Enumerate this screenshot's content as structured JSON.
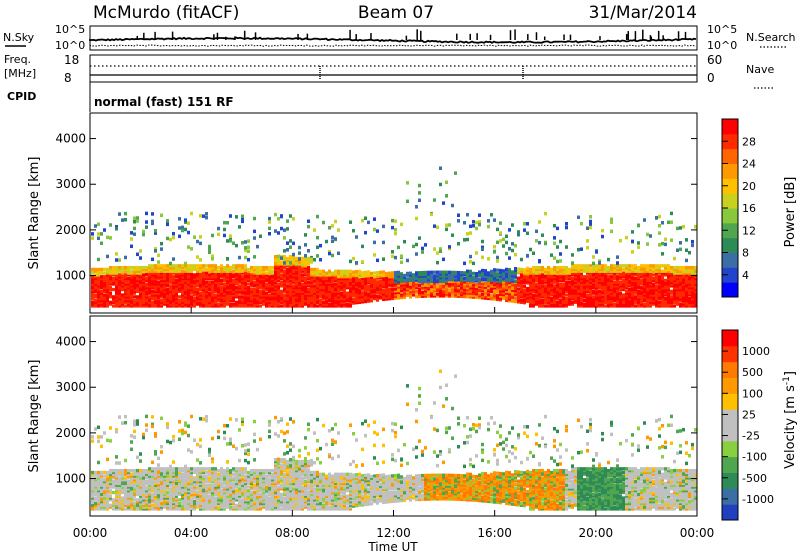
{
  "header": {
    "station": "McMurdo (fitACF)",
    "beam": "Beam 07",
    "date": "31/Mar/2014"
  },
  "noise_panel": {
    "left_label": "N.Sky",
    "right_label": "N.Search",
    "left_ticks": [
      "10^5",
      "10^0"
    ],
    "right_ticks": [
      "10^5",
      "10^0"
    ]
  },
  "freq_panel": {
    "left_label_1": "Freq.",
    "left_label_2": "[MHz]",
    "left_ticks": [
      "18",
      "8"
    ],
    "right_label": "Nave",
    "right_ticks": [
      "60",
      "0"
    ]
  },
  "cpid": {
    "label": "CPID",
    "value": "normal (fast) 151 RF"
  },
  "chart_data": [
    {
      "type": "heatmap",
      "title": "",
      "ylabel": "Slant Range [km]",
      "ylim": [
        180,
        4560
      ],
      "yticks": [
        "4000",
        "3000",
        "2000",
        "1000"
      ],
      "colorbar_label": "Power [dB]",
      "colorbar_ticks": [
        "28",
        "24",
        "20",
        "16",
        "12",
        "8",
        "4"
      ],
      "colorbar_colors": [
        "#0000ff",
        "#2244cc",
        "#3a6ea5",
        "#2e8b57",
        "#4fa64f",
        "#88c83c",
        "#c8d21e",
        "#ffc000",
        "#ff9900",
        "#ff6600",
        "#ff2a00",
        "#ff0000"
      ]
    },
    {
      "type": "heatmap",
      "title": "",
      "ylabel": "Slant Range [km]",
      "ylim": [
        180,
        4560
      ],
      "yticks": [
        "4000",
        "3000",
        "2000",
        "1000"
      ],
      "colorbar_label": "Velocity [m s^-1]",
      "colorbar_ticks": [
        "1000",
        "500",
        "100",
        "25",
        "-25",
        "-100",
        "-500",
        "-1000"
      ],
      "colorbar_colors": [
        "#2040c0",
        "#3a6ea5",
        "#2e8b57",
        "#4fa64f",
        "#88d040",
        "#c0c0c0",
        "#c0c0c0",
        "#ffc000",
        "#ff9900",
        "#ff7a00",
        "#ff3300",
        "#ff0000"
      ]
    }
  ],
  "xaxis": {
    "label": "Time UT",
    "ticks": [
      "00:00",
      "04:00",
      "08:00",
      "12:00",
      "16:00",
      "20:00",
      "00:00"
    ]
  }
}
